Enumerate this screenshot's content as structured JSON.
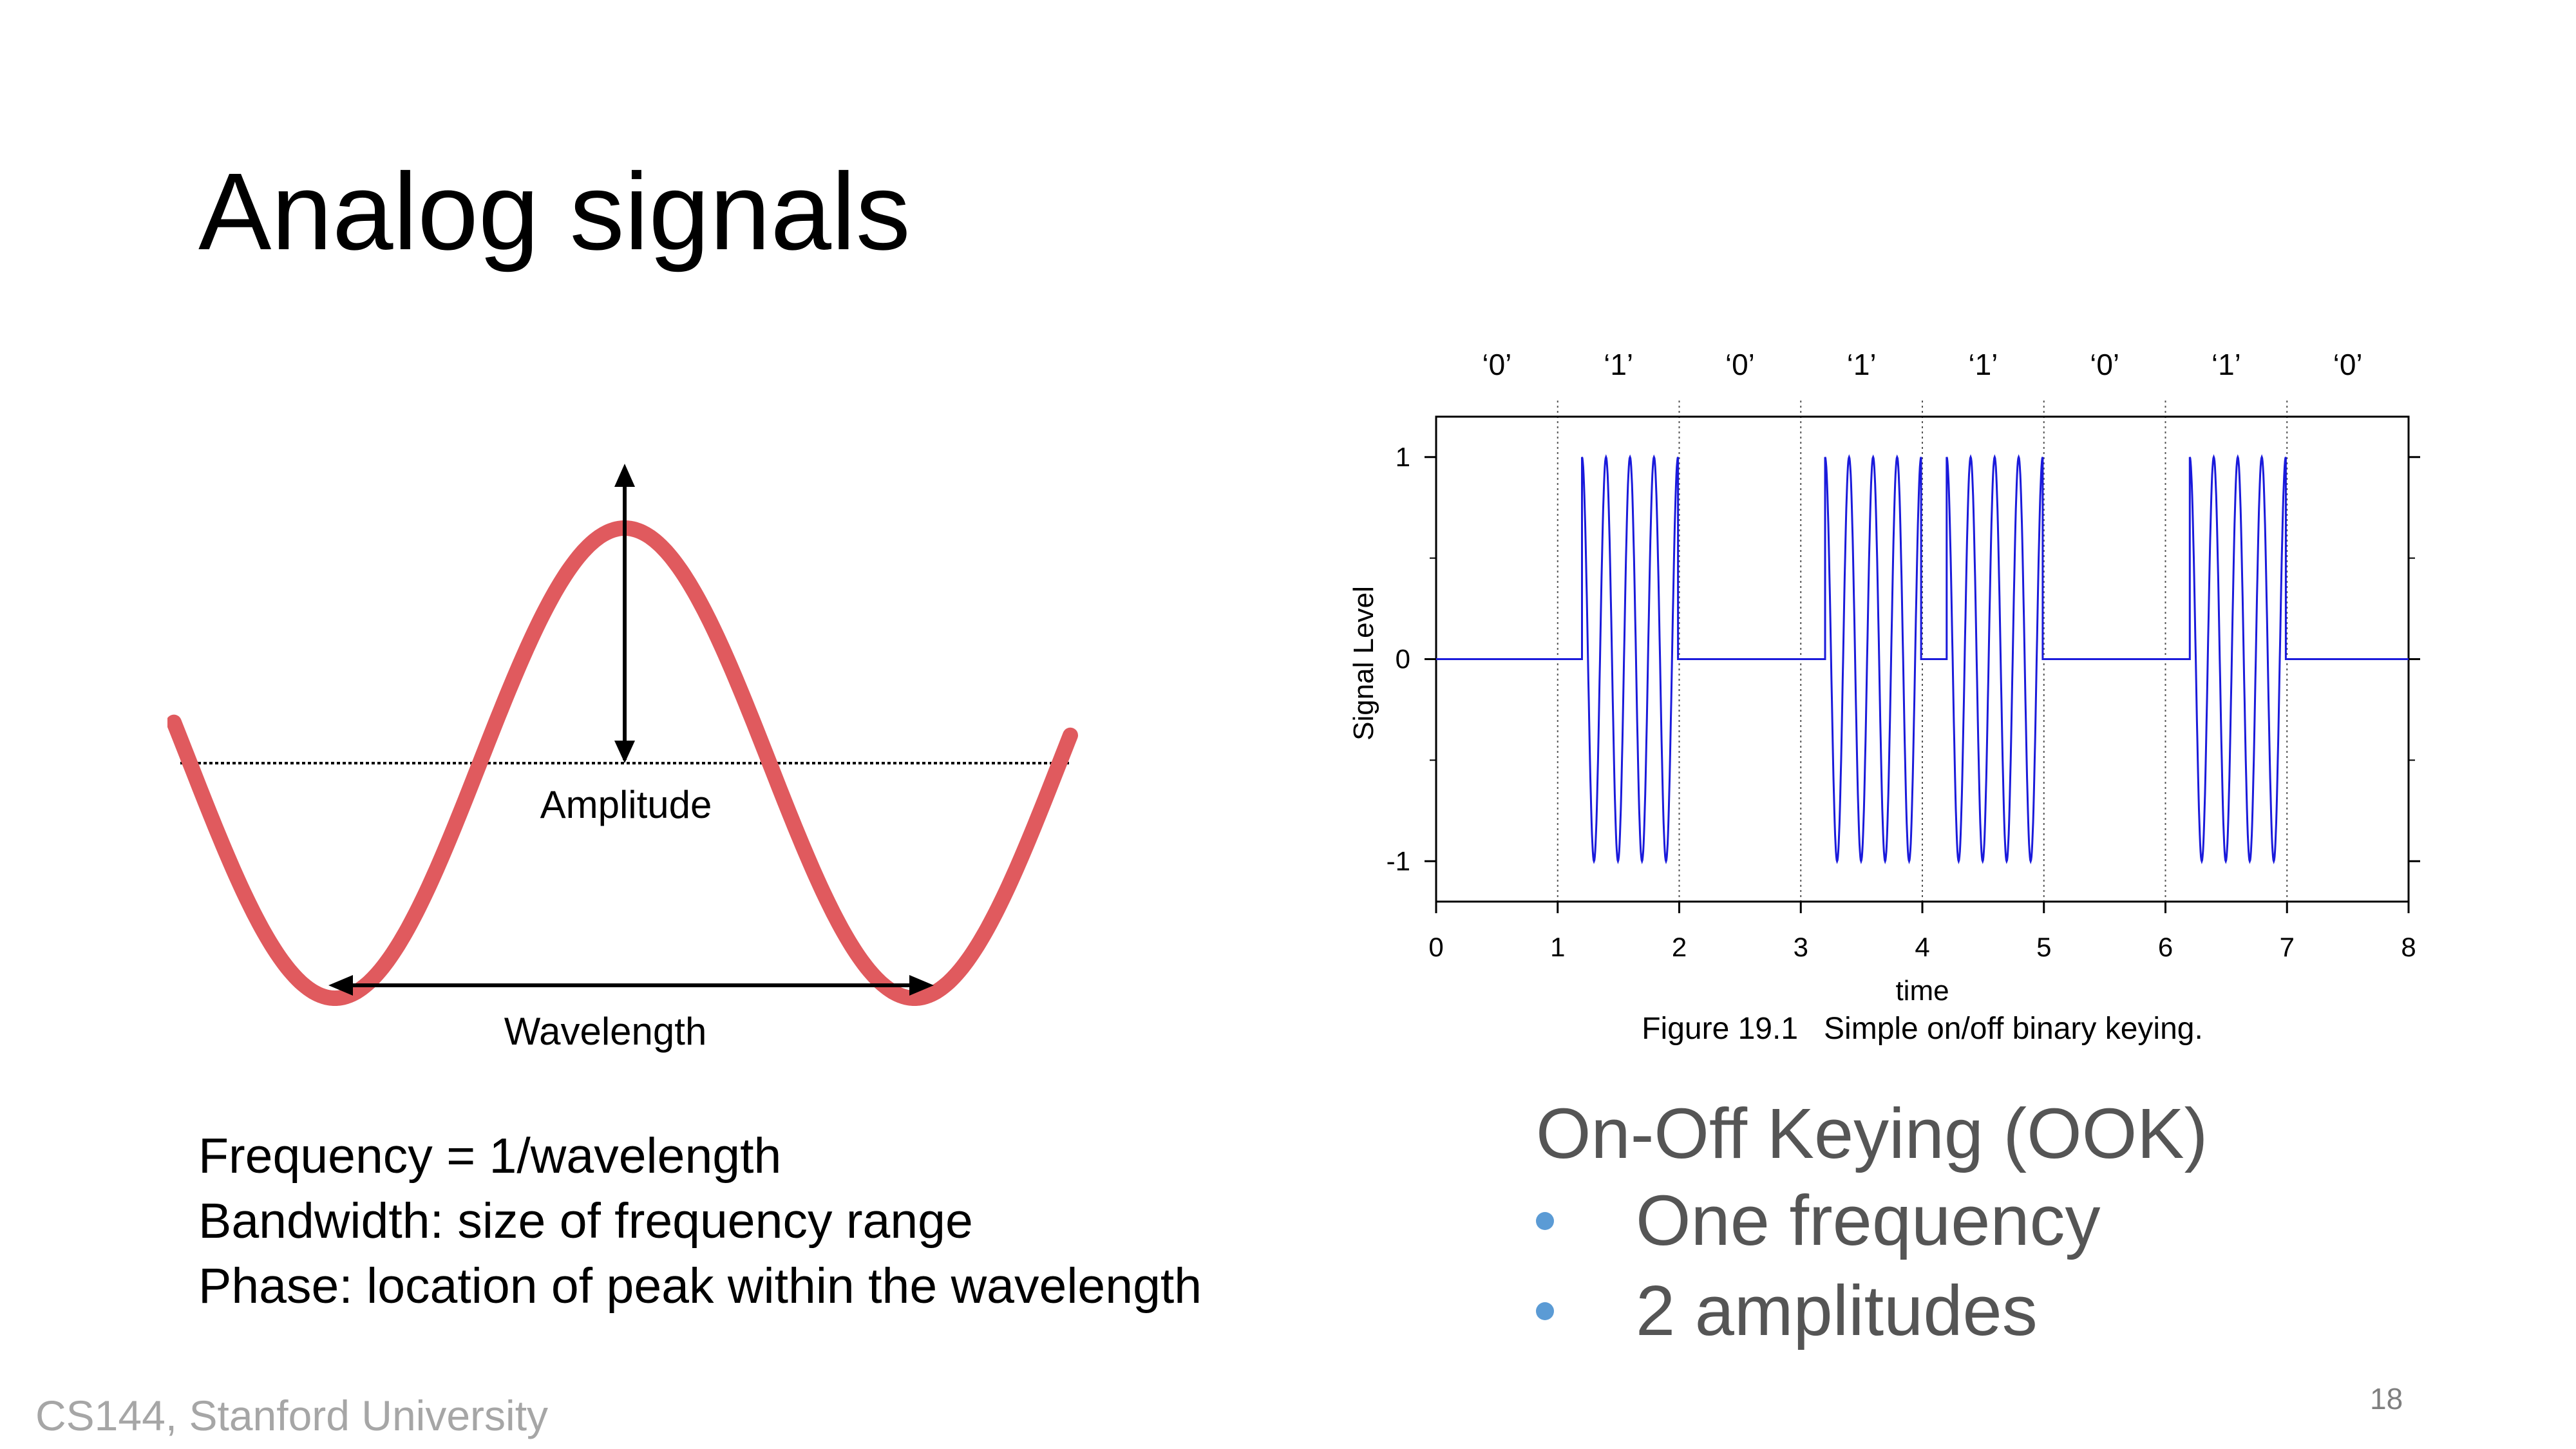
{
  "slide": {
    "title": "Analog signals",
    "footer": "CS144, Stanford University",
    "page_number": "18"
  },
  "sine_figure": {
    "amplitude_label": "Amplitude",
    "wavelength_label": "Wavelength",
    "wave_color": "#e05a5e"
  },
  "definitions": [
    "Frequency = 1/wavelength",
    "Bandwidth: size of frequency range",
    "Phase: location of peak within the wavelength"
  ],
  "ook": {
    "heading": "On-Off Keying (OOK)",
    "bullets": [
      "One frequency",
      "2 amplitudes"
    ],
    "bullet_color": "#5b9bd5"
  },
  "chart_data": {
    "type": "line",
    "title": "",
    "caption": "Figure 19.1   Simple on/off binary keying.",
    "xlabel": "time",
    "ylabel": "Signal Level",
    "xlim": [
      0,
      8
    ],
    "ylim": [
      -1.2,
      1.2
    ],
    "x_ticks": [
      "0",
      "1",
      "2",
      "3",
      "4",
      "5",
      "6",
      "7",
      "8"
    ],
    "y_ticks": [
      "1",
      "0",
      "-1"
    ],
    "y_tick_values": [
      1,
      0,
      -1
    ],
    "bit_labels": [
      "‘0’",
      "‘1’",
      "‘0’",
      "‘1’",
      "‘1’",
      "‘0’",
      "‘1’",
      "‘0’"
    ],
    "bits": [
      0,
      1,
      0,
      1,
      1,
      0,
      1,
      0
    ],
    "carrier_cycles_per_bit": 4,
    "on_amplitude": 1,
    "off_amplitude": 0,
    "bit_boundaries_dotted": true,
    "line_color": "#1a1adb"
  }
}
